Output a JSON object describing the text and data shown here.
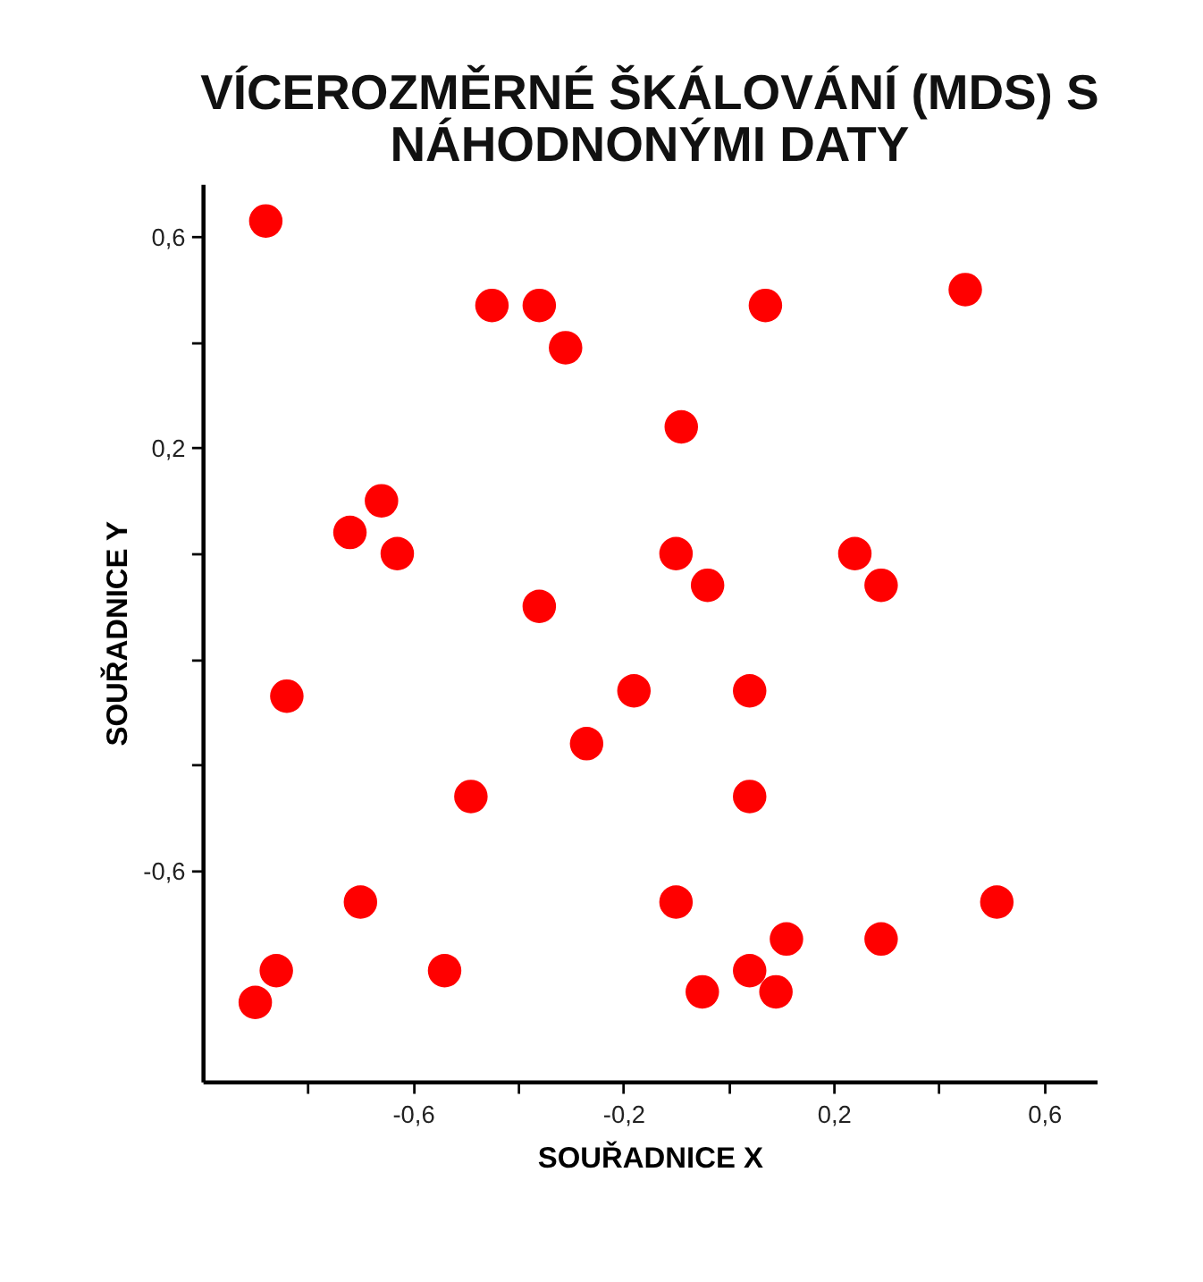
{
  "chart_data": {
    "type": "scatter",
    "title": "VÍCEROZMĚRNÉ ŠKÁLOVÁNÍ (MDS) S NÁHODNONÝMI DATY",
    "xlabel": "SOUŘADNICE X",
    "ylabel": "SOUŘADNICE Y",
    "x": [
      -0.88,
      -0.45,
      -0.36,
      -0.31,
      0.07,
      0.45,
      -0.09,
      -0.66,
      -0.72,
      -0.63,
      -0.1,
      -0.04,
      0.24,
      0.29,
      -0.36,
      -0.84,
      -0.18,
      0.04,
      -0.27,
      -0.49,
      0.04,
      -0.7,
      -0.1,
      0.51,
      -0.86,
      -0.54,
      0.04,
      0.11,
      0.29,
      -0.9,
      -0.05,
      0.09
    ],
    "series": [
      {
        "color": "#ff0000",
        "values": [
          0.63,
          0.47,
          0.47,
          0.39,
          0.47,
          0.5,
          0.24,
          0.1,
          0.04,
          0.0,
          0.0,
          -0.06,
          0.0,
          -0.06,
          -0.1,
          -0.27,
          -0.26,
          -0.26,
          -0.36,
          -0.46,
          -0.46,
          -0.66,
          -0.66,
          -0.66,
          -0.79,
          -0.79,
          -0.79,
          -0.73,
          -0.73,
          -0.85,
          -0.83,
          -0.83
        ]
      }
    ],
    "xlim": [
      -1.0,
      0.7
    ],
    "ylim": [
      -1.0,
      0.7
    ],
    "xticks": [
      {
        "value": -0.8,
        "label": null
      },
      {
        "value": -0.6,
        "label": "-0,6"
      },
      {
        "value": -0.4,
        "label": null
      },
      {
        "value": -0.2,
        "label": "-0,2"
      },
      {
        "value": 0,
        "label": null
      },
      {
        "value": 0.2,
        "label": "0,2"
      },
      {
        "value": 0.4,
        "label": null
      },
      {
        "value": 0.6,
        "label": "0,6"
      }
    ],
    "yticks": [
      {
        "value": 0.6,
        "label": "0,6"
      },
      {
        "value": 0.4,
        "label": null
      },
      {
        "value": 0.2,
        "label": "0,2"
      },
      {
        "value": 0,
        "label": null
      },
      {
        "value": -0.2,
        "label": null
      },
      {
        "value": -0.4,
        "label": null
      },
      {
        "value": -0.6,
        "label": "-0,6"
      }
    ],
    "grid": false,
    "marker": "circle"
  }
}
